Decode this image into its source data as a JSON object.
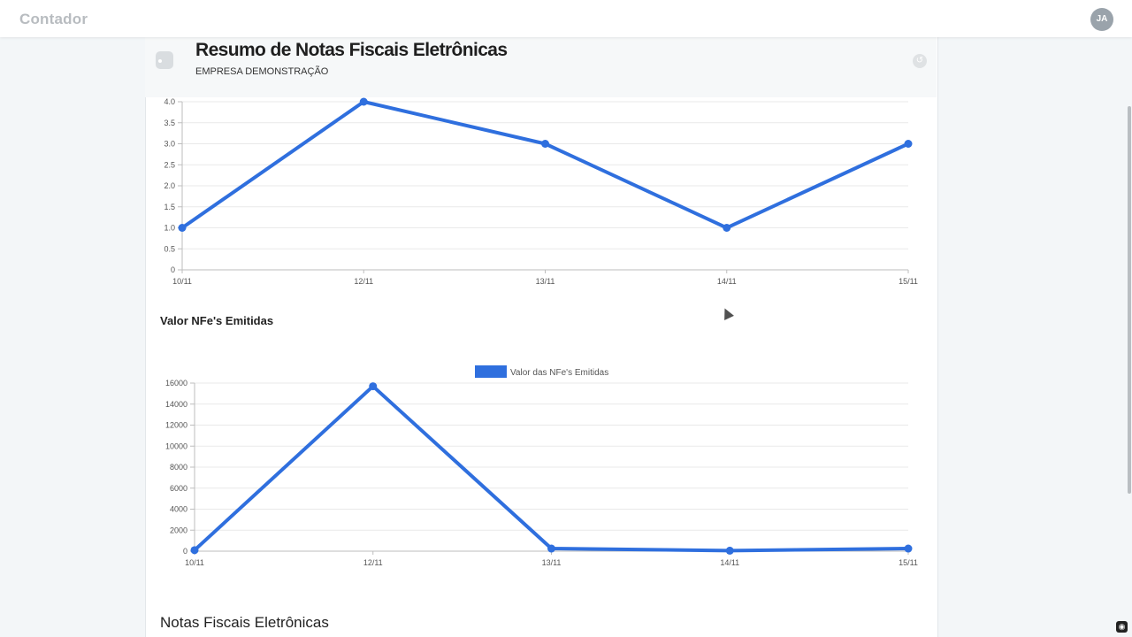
{
  "app": {
    "brand": "Contador",
    "user_initials": "JA"
  },
  "popover": {
    "title": "Resumo de Notas Fiscais Eletrônicas",
    "company": "EMPRESA DEMONSTRAÇÃO"
  },
  "sections": {
    "value_chart_title": "Valor NFe's Emitidas",
    "nfe_list_title": "Notas Fiscais Eletrônicas"
  },
  "colors": {
    "series": "#2f6fde",
    "legend": "#2f6fde"
  },
  "chart_data": [
    {
      "type": "line",
      "title": "",
      "categories": [
        "10/11",
        "12/11",
        "13/11",
        "14/11",
        "15/11"
      ],
      "series": [
        {
          "values": [
            1,
            4,
            3,
            1,
            3
          ]
        }
      ],
      "ylim": [
        0,
        4
      ],
      "yticks": [
        "0",
        "0.5",
        "1.0",
        "1.5",
        "2.0",
        "2.5",
        "3.0",
        "3.5",
        "4.0"
      ],
      "grid": true
    },
    {
      "type": "line",
      "title": "",
      "categories": [
        "10/11",
        "12/11",
        "13/11",
        "14/11",
        "15/11"
      ],
      "series": [
        {
          "name": "Valor das NFe's Emitidas",
          "values": [
            100,
            15700,
            250,
            50,
            250
          ]
        }
      ],
      "ylim": [
        0,
        16000
      ],
      "yticks": [
        "0",
        "2000",
        "4000",
        "6000",
        "8000",
        "10000",
        "12000",
        "14000",
        "16000"
      ],
      "legend": "top-center",
      "grid": true
    }
  ]
}
